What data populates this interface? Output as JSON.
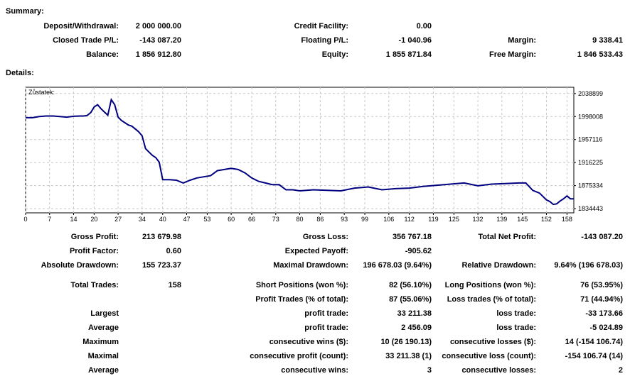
{
  "summary": {
    "heading": "Summary:",
    "deposit_label": "Deposit/Withdrawal:",
    "deposit_value": "2 000 000.00",
    "credit_label": "Credit Facility:",
    "credit_value": "0.00",
    "closed_label": "Closed Trade P/L:",
    "closed_value": "-143 087.20",
    "floating_label": "Floating P/L:",
    "floating_value": "-1 040.96",
    "margin_label": "Margin:",
    "margin_value": "9 338.41",
    "balance_label": "Balance:",
    "balance_value": "1 856 912.80",
    "equity_label": "Equity:",
    "equity_value": "1 855 871.84",
    "free_margin_label": "Free Margin:",
    "free_margin_value": "1 846 533.43"
  },
  "details": {
    "heading": "Details:",
    "gross_profit_label": "Gross Profit:",
    "gross_profit_value": "213 679.98",
    "gross_loss_label": "Gross Loss:",
    "gross_loss_value": "356 767.18",
    "total_net_label": "Total Net Profit:",
    "total_net_value": "-143 087.20",
    "profit_factor_label": "Profit Factor:",
    "profit_factor_value": "0.60",
    "expected_payoff_label": "Expected Payoff:",
    "expected_payoff_value": "-905.62",
    "abs_dd_label": "Absolute Drawdown:",
    "abs_dd_value": "155 723.37",
    "max_dd_label": "Maximal Drawdown:",
    "max_dd_value": "196 678.03 (9.64%)",
    "rel_dd_label": "Relative Drawdown:",
    "rel_dd_value": "9.64% (196 678.03)",
    "total_trades_label": "Total Trades:",
    "total_trades_value": "158",
    "short_label": "Short Positions (won %):",
    "short_value": "82 (56.10%)",
    "long_label": "Long Positions (won %):",
    "long_value": "76 (53.95%)",
    "profit_trades_label": "Profit Trades (% of total):",
    "profit_trades_value": "87 (55.06%)",
    "loss_trades_label": "Loss trades (% of total):",
    "loss_trades_value": "71 (44.94%)",
    "largest_label": "Largest",
    "largest_profit_label": "profit trade:",
    "largest_profit_value": "33 211.38",
    "largest_loss_label": "loss trade:",
    "largest_loss_value": "-33 173.66",
    "average_label": "Average",
    "avg_profit_label": "profit trade:",
    "avg_profit_value": "2 456.09",
    "avg_loss_label": "loss trade:",
    "avg_loss_value": "-5 024.89",
    "maximum_label": "Maximum",
    "max_cons_wins_label": "consecutive wins ($):",
    "max_cons_wins_value": "10 (26 190.13)",
    "max_cons_losses_label": "consecutive losses ($):",
    "max_cons_losses_value": "14 (-154 106.74)",
    "maximal_label": "Maximal",
    "maximal_profit_label": "consecutive profit (count):",
    "maximal_profit_value": "33 211.38 (1)",
    "maximal_loss_label": "consecutive loss (count):",
    "maximal_loss_value": "-154 106.74 (14)",
    "average2_label": "Average",
    "avg_cons_wins_label": "consecutive wins:",
    "avg_cons_wins_value": "3",
    "avg_cons_losses_label": "consecutive losses:",
    "avg_cons_losses_value": "2"
  },
  "chart_data": {
    "type": "line",
    "title": "Zůstatek:",
    "line_color": "#000080",
    "x_ticks": [
      "0",
      "7",
      "14",
      "20",
      "27",
      "34",
      "40",
      "47",
      "53",
      "60",
      "66",
      "73",
      "80",
      "86",
      "93",
      "99",
      "106",
      "112",
      "119",
      "125",
      "132",
      "139",
      "145",
      "152",
      "158"
    ],
    "y_ticks": [
      "2038899",
      "1998008",
      "1957116",
      "1916225",
      "1875334",
      "1834443"
    ],
    "xlim": [
      0,
      160
    ],
    "ylim": [
      1827000,
      2050000
    ],
    "series": [
      {
        "x": [
          0,
          2,
          4,
          6,
          8,
          10,
          12,
          14,
          16,
          17,
          18,
          19,
          20,
          21,
          22,
          23,
          24,
          25,
          26,
          27,
          28,
          29,
          30,
          31,
          32,
          33,
          34,
          35,
          36,
          37,
          38,
          39,
          40,
          42,
          44,
          46,
          48,
          50,
          52,
          54,
          56,
          58,
          60,
          62,
          64,
          66,
          68,
          70,
          72,
          74,
          76,
          78,
          80,
          84,
          88,
          92,
          96,
          100,
          104,
          108,
          112,
          116,
          120,
          124,
          128,
          132,
          136,
          140,
          144,
          146,
          148,
          150,
          152,
          153,
          154,
          155,
          156,
          157,
          158,
          159,
          160
        ],
        "y": [
          1996000,
          1996000,
          1998000,
          1999000,
          1999000,
          1998000,
          1997000,
          1998500,
          1999000,
          1999000,
          2000000,
          2005000,
          2015000,
          2019000,
          2012000,
          2006000,
          2000500,
          2028000,
          2019000,
          1997000,
          1991000,
          1987000,
          1983000,
          1981000,
          1976000,
          1971000,
          1964000,
          1941000,
          1935000,
          1929000,
          1925000,
          1917000,
          1886000,
          1886000,
          1885000,
          1880000,
          1885000,
          1889000,
          1891000,
          1893000,
          1902000,
          1904000,
          1906000,
          1904000,
          1898000,
          1889000,
          1883000,
          1880000,
          1877000,
          1877000,
          1868000,
          1868000,
          1866000,
          1868000,
          1867000,
          1866000,
          1871000,
          1873000,
          1868000,
          1870000,
          1871000,
          1874000,
          1876000,
          1878000,
          1880000,
          1875000,
          1878000,
          1879000,
          1880000,
          1880000,
          1867000,
          1862000,
          1850000,
          1847000,
          1842000,
          1843000,
          1848000,
          1852000,
          1857000,
          1852000,
          1852000
        ]
      }
    ]
  }
}
